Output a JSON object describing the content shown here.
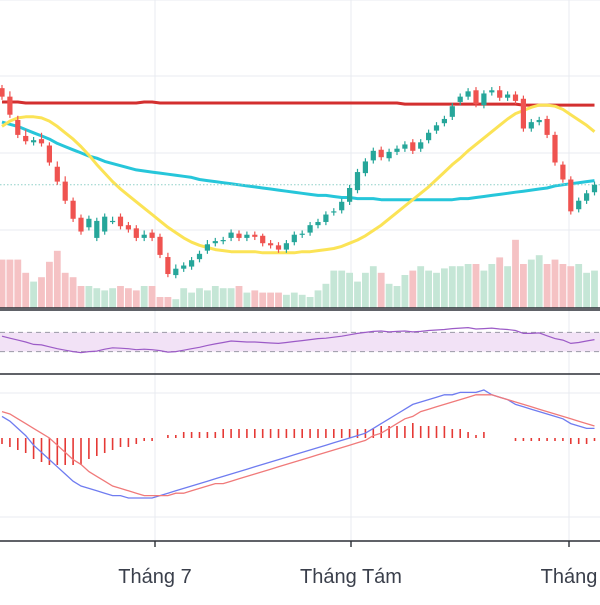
{
  "x_axis": {
    "labels": [
      "Tháng 7",
      "Tháng Tám",
      "Tháng"
    ]
  },
  "colors": {
    "up_candle": "#26a69a",
    "down_candle": "#ef5350",
    "up_volume": "#c5e6d6",
    "down_volume": "#f5c2c4",
    "ma_red": "#d32f2f",
    "ma_cyan": "#26c6da",
    "ma_yellow": "#fbe356",
    "rsi_line": "#9c5bc7",
    "rsi_band": "#f2e2f6",
    "macd_line": "#6f7cf0",
    "signal_line": "#f07a7a",
    "histogram": "#e53935",
    "grid": "#e8ebf0",
    "reference_line": "#8fd0c8"
  },
  "chart_data": [
    {
      "type": "candlestick",
      "panel": "price",
      "x": [
        "Jun 18",
        "Jun 19",
        "Jun 20",
        "Jun 21",
        "Jun 24",
        "Jun 25",
        "Jun 26",
        "Jun 27",
        "Jun 28",
        "Jul 1",
        "Jul 2",
        "Jul 3",
        "Jul 4",
        "Jul 5",
        "Jul 8",
        "Jul 9",
        "Jul 10",
        "Jul 11",
        "Jul 12",
        "Jul 15",
        "Jul 16",
        "Jul 17",
        "Jul 18",
        "Jul 19",
        "Jul 22",
        "Jul 23",
        "Jul 24",
        "Jul 25",
        "Jul 26",
        "Jul 29",
        "Jul 30",
        "Jul 31",
        "Aug 1",
        "Aug 2",
        "Aug 5",
        "Aug 6",
        "Aug 7",
        "Aug 8",
        "Aug 9",
        "Aug 12",
        "Aug 13",
        "Aug 14",
        "Aug 15",
        "Aug 16",
        "Aug 19",
        "Aug 20",
        "Aug 21",
        "Aug 22",
        "Aug 23",
        "Aug 26",
        "Aug 27",
        "Aug 28",
        "Aug 29",
        "Aug 30",
        "Sep 2",
        "Sep 3",
        "Sep 4",
        "Sep 5",
        "Sep 6",
        "Sep 9",
        "Sep 10",
        "Sep 11",
        "Sep 12",
        "Sep 13",
        "Sep 16",
        "Sep 17",
        "Sep 18",
        "Sep 19",
        "Sep 20",
        "Sep 23",
        "Sep 24",
        "Sep 25",
        "Sep 26",
        "Sep 27",
        "Sep 30",
        "Oct 1"
      ],
      "open": [
        82.2,
        81.4,
        79.2,
        77.7,
        77.1,
        77.4,
        76.8,
        74.8,
        73.4,
        71.6,
        70.0,
        69.1,
        68.1,
        68.7,
        69.7,
        70.1,
        69.3,
        69.0,
        68.1,
        68.6,
        68.2,
        66.3,
        64.6,
        65.2,
        65.4,
        66.1,
        66.9,
        67.6,
        67.8,
        68.1,
        68.5,
        68.1,
        68.4,
        68.3,
        67.6,
        67.4,
        67.0,
        67.7,
        68.4,
        68.6,
        69.3,
        69.6,
        70.5,
        70.7,
        71.5,
        72.6,
        74.2,
        75.4,
        76.4,
        75.6,
        76.2,
        76.5,
        77.1,
        76.5,
        77.3,
        78.2,
        78.9,
        79.5,
        80.9,
        81.4,
        82.0,
        80.6,
        81.8,
        82.0,
        81.3,
        81.6,
        81.2,
        78.4,
        79.0,
        79.3,
        77.8,
        75.0,
        73.6,
        70.8,
        71.6,
        72.4
      ],
      "close": [
        81.4,
        79.7,
        77.8,
        77.2,
        77.3,
        77.0,
        75.2,
        73.4,
        71.6,
        69.9,
        68.7,
        69.9,
        69.7,
        70.1,
        69.7,
        69.2,
        68.9,
        68.1,
        68.4,
        68.1,
        66.5,
        64.7,
        65.2,
        65.5,
        66.0,
        66.6,
        67.5,
        67.8,
        67.9,
        68.6,
        68.1,
        68.4,
        68.2,
        67.6,
        67.4,
        67.0,
        67.6,
        68.4,
        68.5,
        69.3,
        69.6,
        70.3,
        70.6,
        71.5,
        72.8,
        74.3,
        75.3,
        76.3,
        75.7,
        76.2,
        76.5,
        76.9,
        76.3,
        77.1,
        78.0,
        78.7,
        79.3,
        80.5,
        81.4,
        81.9,
        80.7,
        81.7,
        82.0,
        81.3,
        81.6,
        81.0,
        78.4,
        79.0,
        79.2,
        77.8,
        75.2,
        73.6,
        70.6,
        71.6,
        72.3,
        73.1
      ],
      "high": [
        82.5,
        81.9,
        79.6,
        78.3,
        77.6,
        78.0,
        77.1,
        75.3,
        73.9,
        71.9,
        70.3,
        70.2,
        70.0,
        70.4,
        70.1,
        70.4,
        69.6,
        69.3,
        68.8,
        68.9,
        68.5,
        66.7,
        65.6,
        65.8,
        66.3,
        66.9,
        67.9,
        68.1,
        68.2,
        68.9,
        68.8,
        68.7,
        68.7,
        68.5,
        67.9,
        67.7,
        67.9,
        68.7,
        68.8,
        69.6,
        69.9,
        70.6,
        70.9,
        71.8,
        73.1,
        74.6,
        75.6,
        76.6,
        76.7,
        76.5,
        76.8,
        77.2,
        77.4,
        77.4,
        78.3,
        79.0,
        79.6,
        80.8,
        81.7,
        82.2,
        82.3,
        82.0,
        82.3,
        82.4,
        81.9,
        81.9,
        81.5,
        79.3,
        79.5,
        79.6,
        78.1,
        75.3,
        73.9,
        71.9,
        72.6,
        73.4
      ],
      "low": [
        81.1,
        79.4,
        77.5,
        76.9,
        76.8,
        76.7,
        74.9,
        73.1,
        71.3,
        69.6,
        68.4,
        68.8,
        67.8,
        68.4,
        69.4,
        68.9,
        68.6,
        67.8,
        67.8,
        67.8,
        66.2,
        64.4,
        64.3,
        64.9,
        65.1,
        65.8,
        66.6,
        67.3,
        67.5,
        67.8,
        67.8,
        67.8,
        67.9,
        67.3,
        67.1,
        66.7,
        66.7,
        67.4,
        68.1,
        68.3,
        69.0,
        69.3,
        70.2,
        70.4,
        71.2,
        72.3,
        73.9,
        75.1,
        75.4,
        75.3,
        75.9,
        76.2,
        76.0,
        76.2,
        77.0,
        77.9,
        78.6,
        79.2,
        80.6,
        81.1,
        80.4,
        80.3,
        81.5,
        81.0,
        81.0,
        80.7,
        78.1,
        78.1,
        78.7,
        77.5,
        74.9,
        73.3,
        70.3,
        70.5,
        71.3,
        72.1
      ]
    },
    {
      "type": "line",
      "panel": "price",
      "series": [
        {
          "values": [
            80.9,
            80.9,
            80.9,
            80.8,
            80.8,
            80.8,
            80.8,
            80.8,
            80.8,
            80.8,
            80.8,
            80.8,
            80.8,
            80.8,
            80.8,
            80.8,
            80.8,
            80.8,
            80.9,
            80.9,
            80.8,
            80.8,
            80.8,
            80.8,
            80.8,
            80.8,
            80.8,
            80.8,
            80.8,
            80.8,
            80.8,
            80.8,
            80.8,
            80.8,
            80.8,
            80.8,
            80.8,
            80.8,
            80.8,
            80.8,
            80.8,
            80.8,
            80.8,
            80.8,
            80.8,
            80.8,
            80.8,
            80.8,
            80.8,
            80.8,
            80.8,
            80.7,
            80.7,
            80.7,
            80.7,
            80.7,
            80.7,
            80.7,
            80.7,
            80.7,
            80.7,
            80.7,
            80.7,
            80.7,
            80.7,
            80.7,
            80.6,
            80.6,
            80.6,
            80.6,
            80.6,
            80.6,
            80.6,
            80.6,
            80.6,
            80.6
          ]
        },
        {
          "values": [
            79.0,
            78.8,
            78.6,
            78.3,
            78.0,
            77.7,
            77.4,
            77.0,
            76.7,
            76.4,
            76.1,
            75.8,
            75.6,
            75.3,
            75.1,
            74.9,
            74.7,
            74.5,
            74.4,
            74.3,
            74.2,
            74.1,
            74.0,
            73.9,
            73.8,
            73.6,
            73.5,
            73.4,
            73.3,
            73.2,
            73.1,
            73.0,
            72.9,
            72.8,
            72.7,
            72.6,
            72.5,
            72.4,
            72.3,
            72.2,
            72.1,
            72.1,
            72.0,
            71.9,
            71.9,
            71.8,
            71.8,
            71.8,
            71.7,
            71.7,
            71.7,
            71.7,
            71.7,
            71.7,
            71.7,
            71.7,
            71.7,
            71.7,
            71.8,
            71.8,
            71.9,
            72.0,
            72.1,
            72.2,
            72.3,
            72.4,
            72.5,
            72.6,
            72.7,
            72.8,
            73.0,
            73.1,
            73.2,
            73.3,
            73.4,
            73.5
          ]
        },
        {
          "values": [
            78.6,
            79.1,
            79.4,
            79.5,
            79.5,
            79.4,
            79.1,
            78.6,
            78.0,
            77.4,
            76.7,
            75.9,
            75.0,
            74.2,
            73.4,
            72.7,
            72.1,
            71.5,
            70.9,
            70.3,
            69.7,
            69.1,
            68.6,
            68.1,
            67.7,
            67.4,
            67.2,
            67.0,
            66.9,
            66.8,
            66.8,
            66.8,
            66.8,
            66.7,
            66.7,
            66.7,
            66.7,
            66.7,
            66.8,
            66.8,
            66.9,
            67.0,
            67.1,
            67.3,
            67.6,
            67.9,
            68.3,
            68.8,
            69.3,
            69.9,
            70.5,
            71.1,
            71.7,
            72.3,
            72.9,
            73.6,
            74.3,
            75.0,
            75.6,
            76.3,
            76.9,
            77.5,
            78.1,
            78.7,
            79.3,
            79.8,
            80.1,
            80.4,
            80.6,
            80.6,
            80.5,
            80.2,
            79.7,
            79.2,
            78.7,
            78.1
          ]
        }
      ]
    },
    {
      "type": "bar",
      "panel": "volume",
      "values": [
        2.2,
        2.2,
        2.2,
        1.6,
        1.2,
        1.4,
        2.1,
        2.6,
        1.6,
        1.4,
        1.0,
        1.0,
        0.9,
        0.8,
        0.9,
        1.0,
        0.9,
        0.8,
        1.0,
        1.0,
        0.5,
        0.5,
        0.4,
        0.9,
        0.7,
        0.9,
        0.8,
        1.0,
        0.9,
        0.9,
        1.0,
        0.7,
        0.8,
        0.7,
        0.7,
        0.7,
        0.6,
        0.7,
        0.6,
        0.5,
        0.8,
        1.1,
        1.7,
        1.7,
        1.6,
        1.2,
        1.6,
        1.9,
        1.6,
        1.1,
        1.0,
        1.5,
        1.7,
        1.9,
        1.7,
        1.6,
        1.8,
        1.9,
        1.9,
        2.0,
        2.0,
        1.7,
        2.0,
        2.3,
        1.9,
        3.1,
        2.0,
        2.2,
        2.4,
        2.0,
        2.2,
        2.0,
        1.9,
        2.0,
        1.6,
        1.7
      ]
    },
    {
      "type": "line",
      "panel": "rsi",
      "ylim": [
        0,
        100
      ],
      "reference_lines": [
        30,
        70
      ],
      "series": [
        {
          "values": [
            62,
            58,
            54,
            50,
            45,
            44,
            40,
            36,
            33,
            30,
            28,
            30,
            31,
            35,
            38,
            37,
            36,
            34,
            35,
            34,
            32,
            29,
            30,
            33,
            36,
            39,
            43,
            46,
            49,
            52,
            51,
            50,
            50,
            49,
            48,
            47,
            49,
            51,
            53,
            55,
            57,
            58,
            60,
            62,
            65,
            68,
            70,
            72,
            73,
            71,
            72,
            73,
            71,
            72,
            74,
            75,
            76,
            78,
            79,
            80,
            77,
            78,
            79,
            77,
            76,
            74,
            68,
            68,
            69,
            63,
            57,
            54,
            47,
            49,
            52,
            55
          ]
        }
      ]
    },
    {
      "type": "line",
      "panel": "macd",
      "series": [
        {
          "values": [
            0.9,
            0.7,
            0.4,
            0.1,
            -0.3,
            -0.6,
            -0.9,
            -1.2,
            -1.5,
            -1.8,
            -2.0,
            -2.1,
            -2.2,
            -2.3,
            -2.4,
            -2.4,
            -2.5,
            -2.5,
            -2.5,
            -2.5,
            -2.4,
            -2.3,
            -2.2,
            -2.1,
            -2.0,
            -1.9,
            -1.8,
            -1.7,
            -1.6,
            -1.5,
            -1.4,
            -1.3,
            -1.2,
            -1.1,
            -1.0,
            -0.9,
            -0.8,
            -0.7,
            -0.6,
            -0.5,
            -0.4,
            -0.3,
            -0.2,
            -0.1,
            0.0,
            0.1,
            0.2,
            0.4,
            0.6,
            0.8,
            1.0,
            1.2,
            1.4,
            1.5,
            1.6,
            1.7,
            1.8,
            1.8,
            1.9,
            1.9,
            1.9,
            2.0,
            1.8,
            1.7,
            1.6,
            1.4,
            1.3,
            1.2,
            1.1,
            1.0,
            0.9,
            0.8,
            0.6,
            0.5,
            0.4,
            0.4
          ]
        },
        {
          "values": [
            1.1,
            1.0,
            0.8,
            0.6,
            0.4,
            0.2,
            0.0,
            -0.3,
            -0.6,
            -0.9,
            -1.1,
            -1.4,
            -1.6,
            -1.8,
            -2.0,
            -2.1,
            -2.2,
            -2.3,
            -2.4,
            -2.4,
            -2.4,
            -2.4,
            -2.3,
            -2.3,
            -2.2,
            -2.1,
            -2.0,
            -1.9,
            -1.9,
            -1.8,
            -1.7,
            -1.6,
            -1.5,
            -1.4,
            -1.3,
            -1.2,
            -1.1,
            -1.0,
            -0.9,
            -0.8,
            -0.7,
            -0.6,
            -0.5,
            -0.4,
            -0.3,
            -0.2,
            -0.1,
            0.1,
            0.2,
            0.4,
            0.6,
            0.8,
            0.9,
            1.1,
            1.2,
            1.3,
            1.4,
            1.5,
            1.6,
            1.7,
            1.8,
            1.8,
            1.8,
            1.7,
            1.6,
            1.5,
            1.4,
            1.3,
            1.2,
            1.1,
            1.0,
            0.9,
            0.8,
            0.7,
            0.6,
            0.5
          ]
        }
      ]
    },
    {
      "type": "bar",
      "panel": "macd-histogram",
      "values": [
        -0.2,
        -0.3,
        -0.4,
        -0.5,
        -0.7,
        -0.8,
        -0.9,
        -0.9,
        -0.9,
        -0.9,
        -0.9,
        -0.7,
        -0.6,
        -0.5,
        -0.4,
        -0.3,
        -0.3,
        -0.2,
        -0.1,
        -0.1,
        0.0,
        0.1,
        0.1,
        0.2,
        0.2,
        0.2,
        0.2,
        0.2,
        0.3,
        0.3,
        0.3,
        0.3,
        0.3,
        0.3,
        0.3,
        0.3,
        0.3,
        0.3,
        0.3,
        0.3,
        0.3,
        0.3,
        0.3,
        0.3,
        0.3,
        0.3,
        0.3,
        0.3,
        0.4,
        0.4,
        0.4,
        0.4,
        0.5,
        0.4,
        0.4,
        0.4,
        0.4,
        0.3,
        0.3,
        0.2,
        0.1,
        0.2,
        0.0,
        0.0,
        0.0,
        -0.1,
        -0.1,
        -0.1,
        -0.1,
        -0.1,
        -0.1,
        -0.1,
        -0.2,
        -0.2,
        -0.2,
        -0.1
      ]
    }
  ]
}
